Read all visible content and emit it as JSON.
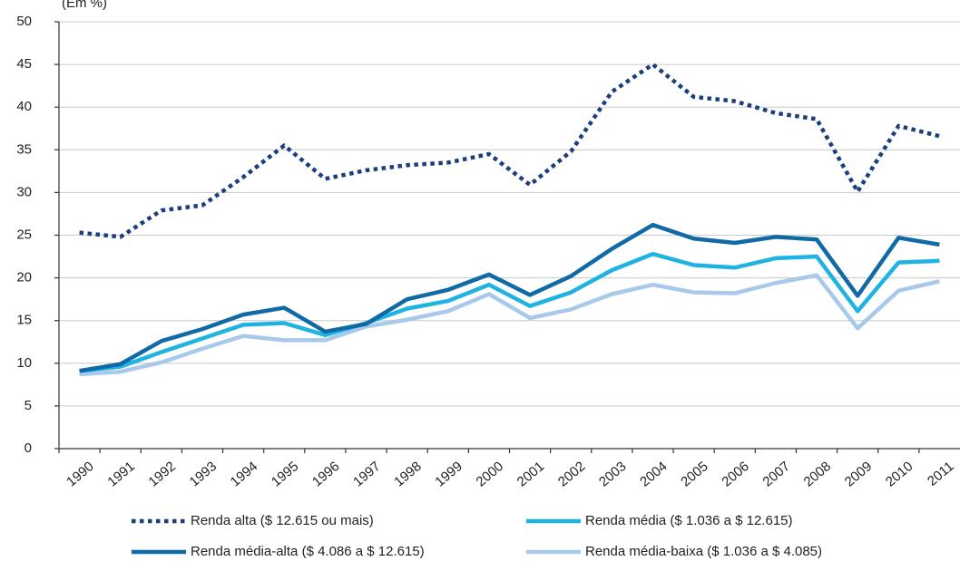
{
  "chart_data": {
    "type": "line",
    "y_label": "(Em %)",
    "categories": [
      "1990",
      "1991",
      "1992",
      "1993",
      "1994",
      "1995",
      "1996",
      "1997",
      "1998",
      "1999",
      "2000",
      "2001",
      "2002",
      "2003",
      "2004",
      "2005",
      "2006",
      "2007",
      "2008",
      "2009",
      "2010",
      "2011"
    ],
    "series": [
      {
        "name": "Renda alta ($ 12.615  ou mais)",
        "color": "#1b3f7c",
        "dash": "dotted",
        "values": [
          25.3,
          24.8,
          27.9,
          28.5,
          31.8,
          35.5,
          31.6,
          32.6,
          33.2,
          33.5,
          34.5,
          30.9,
          34.8,
          41.8,
          45.0,
          41.2,
          40.7,
          39.3,
          38.6,
          30.1,
          37.8,
          36.6
        ]
      },
      {
        "name": "Renda média ($ 1.036 a $ 12.615)",
        "color": "#1fb3e2",
        "values": [
          9.1,
          9.6,
          11.3,
          12.9,
          14.5,
          14.7,
          13.3,
          14.7,
          16.4,
          17.3,
          19.2,
          16.7,
          18.3,
          20.9,
          22.8,
          21.5,
          21.2,
          22.3,
          22.5,
          16.1,
          21.8,
          22.0
        ]
      },
      {
        "name": "Renda média-alta ($ 4.086 a $ 12.615)",
        "color": "#0f6aa5",
        "values": [
          9.1,
          9.9,
          12.6,
          14.0,
          15.7,
          16.5,
          13.7,
          14.6,
          17.5,
          18.6,
          20.4,
          18.0,
          20.2,
          23.4,
          26.2,
          24.6,
          24.1,
          24.8,
          24.5,
          17.9,
          24.7,
          23.9
        ]
      },
      {
        "name": "Renda média-baixa ($ 1.036 a $ 4.085)",
        "color": "#a9c9ea",
        "values": [
          8.7,
          9.0,
          10.1,
          11.7,
          13.2,
          12.7,
          12.7,
          14.3,
          15.1,
          16.1,
          18.1,
          15.3,
          16.3,
          18.1,
          19.2,
          18.3,
          18.2,
          19.4,
          20.3,
          14.1,
          18.5,
          19.6
        ]
      }
    ],
    "ylim": [
      0,
      50
    ],
    "yticks": [
      0,
      5,
      10,
      15,
      20,
      25,
      30,
      35,
      40,
      45,
      50
    ],
    "grid": true
  }
}
